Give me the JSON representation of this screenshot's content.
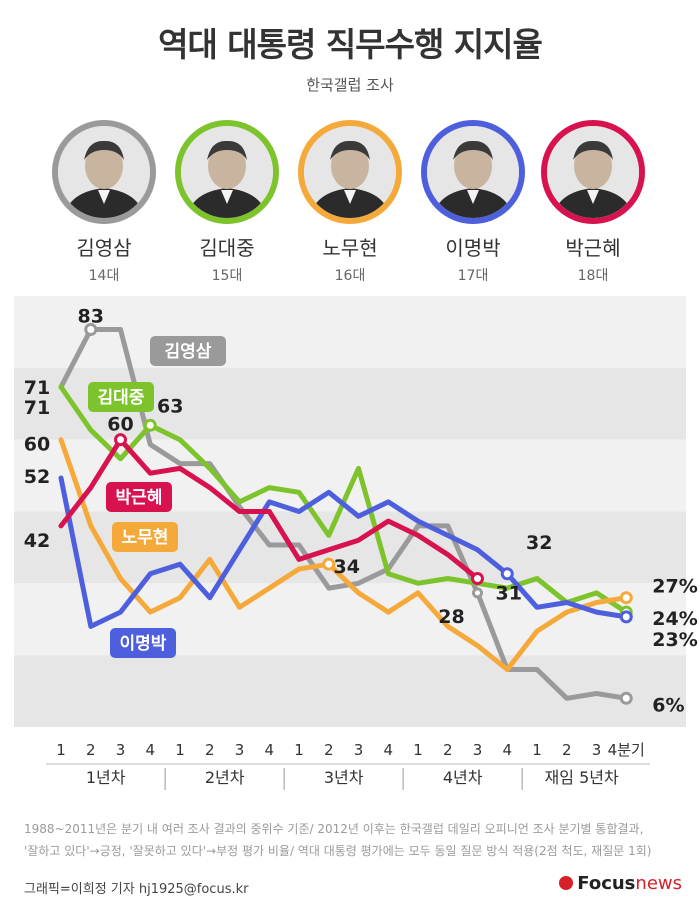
{
  "title": "역대 대통령 직무수행 지지율",
  "subtitle": "한국갤럽 조사",
  "presidents": [
    {
      "name": "김영삼",
      "term": "14대",
      "color": "#9a9a9a"
    },
    {
      "name": "김대중",
      "term": "15대",
      "color": "#7dc42c"
    },
    {
      "name": "노무현",
      "term": "16대",
      "color": "#f6a93b"
    },
    {
      "name": "이명박",
      "term": "17대",
      "color": "#4d5fdc"
    },
    {
      "name": "박근혜",
      "term": "18대",
      "color": "#d8124f"
    }
  ],
  "chart_data": {
    "type": "line",
    "quarters": [
      "1",
      "2",
      "3",
      "4",
      "1",
      "2",
      "3",
      "4",
      "1",
      "2",
      "3",
      "4",
      "1",
      "2",
      "3",
      "4",
      "1",
      "2",
      "3",
      "4분기"
    ],
    "year_groups": [
      "1년차",
      "2년차",
      "3년차",
      "4년차",
      "재임 5년차"
    ],
    "ylim": [
      0,
      90
    ],
    "series": [
      {
        "name": "김영삼",
        "color": "#9a9a9a",
        "values": [
          71,
          83,
          83,
          59,
          55,
          55,
          46,
          38,
          38,
          29,
          30,
          33,
          42,
          42,
          28,
          12,
          12,
          6,
          7,
          6
        ],
        "labels": {
          "0": "71",
          "1": "83",
          "19": "6%"
        }
      },
      {
        "name": "김대중",
        "color": "#7dc42c",
        "values": [
          71,
          62,
          56,
          63,
          60,
          54,
          47,
          50,
          49,
          40,
          54,
          32,
          30,
          31,
          30,
          29,
          31,
          26,
          28,
          24
        ],
        "labels": {
          "0": "71",
          "3": "63",
          "19": "24%"
        }
      },
      {
        "name": "노무현",
        "color": "#f6a93b",
        "values": [
          60,
          42,
          31,
          24,
          27,
          35,
          25,
          29,
          33,
          34,
          28,
          24,
          28,
          21,
          17,
          12,
          20,
          24,
          26,
          27
        ],
        "labels": {
          "0": "60",
          "9": "34",
          "19": "27%"
        }
      },
      {
        "name": "이명박",
        "color": "#4d5fdc",
        "values": [
          52,
          21,
          24,
          32,
          34,
          27,
          37,
          47,
          45,
          49,
          44,
          47,
          43,
          40,
          37,
          32,
          25,
          26,
          24,
          23
        ],
        "labels": {
          "0": "52",
          "15": "32",
          "19": "23%"
        }
      },
      {
        "name": "박근혜",
        "color": "#d8124f",
        "values": [
          42,
          50,
          60,
          53,
          54,
          50,
          45,
          45,
          35,
          37,
          39,
          43,
          40,
          36,
          31
        ],
        "labels": {
          "0": "42",
          "2": "60",
          "14": "31"
        }
      }
    ],
    "annotations": [
      {
        "series": "김영삼",
        "index": 14,
        "text": "28"
      }
    ],
    "legend_labels": [
      "김영삼",
      "김대중",
      "박근혜",
      "노무현",
      "이명박"
    ]
  },
  "footnote": [
    "1988~2011년은 분기 내 여러 조사 결과의 중위수 기준/ 2012년 이후는 한국갤럽 데일리 오피니언 조사 분기별 통합결과,",
    "'잘하고 있다'→긍정, '잘못하고 있다'→부정 평가 비율/ 역대 대통령 평가에는 모두 동일 질문 방식 적용(2점 척도, 재질문 1회)"
  ],
  "credit": "그래픽=이희정 기자 hj1925@focus.kr",
  "logo": {
    "mark": "Focus",
    "news": "news"
  }
}
